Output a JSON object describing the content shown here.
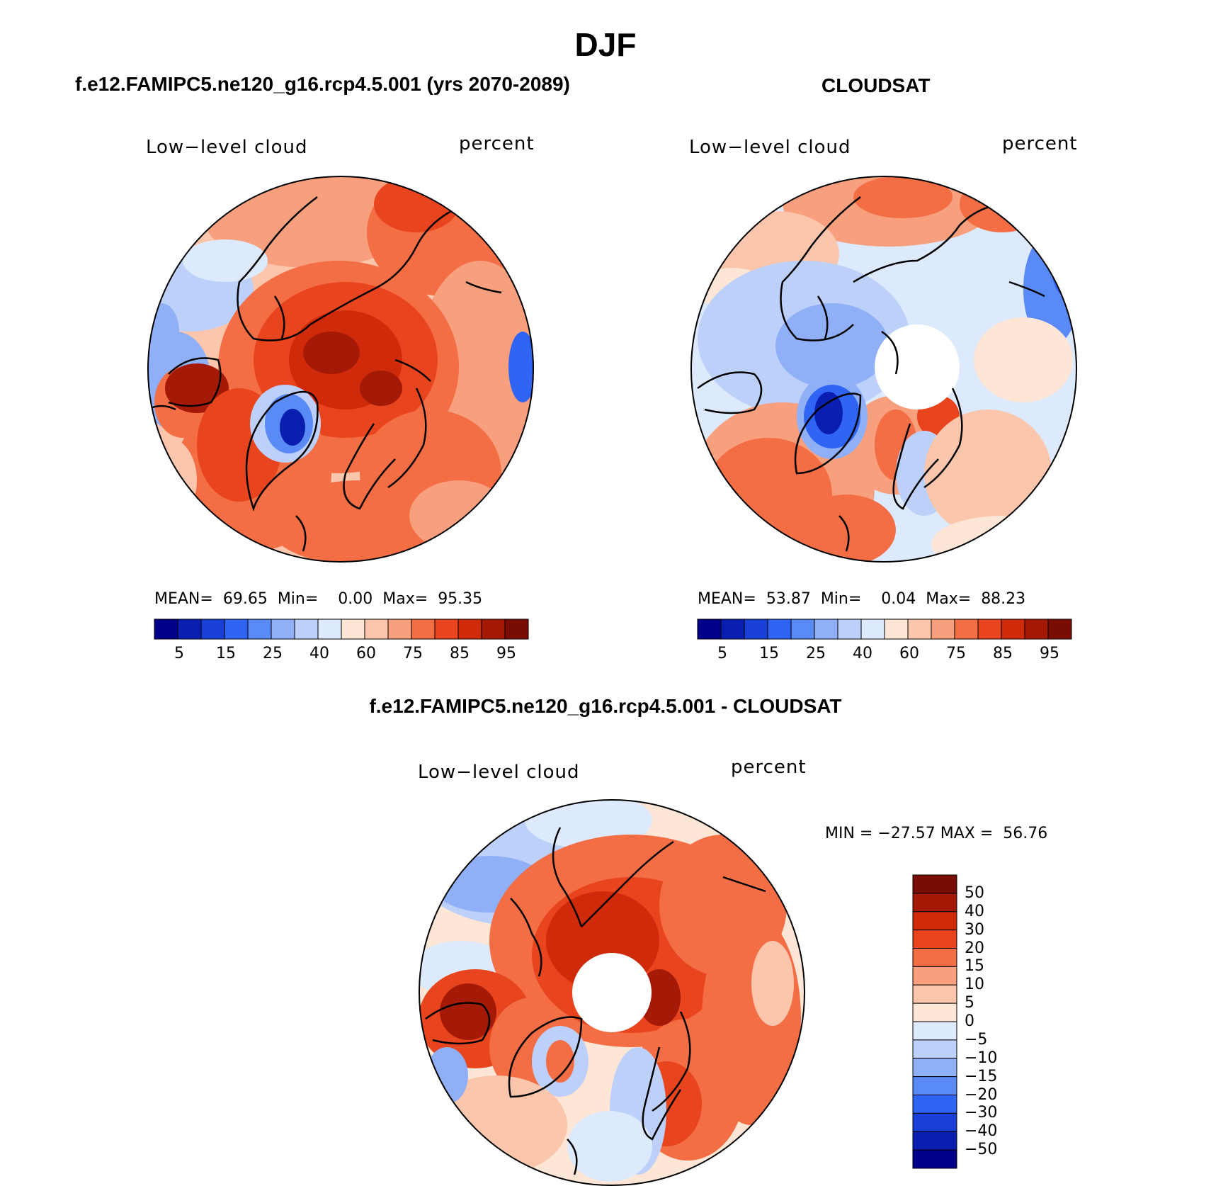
{
  "figure": {
    "title": "DJF"
  },
  "panels": {
    "model": {
      "title": "f.e12.FAMIPC5.ne120_g16.rcp4.5.001 (yrs 2070-2089)",
      "variable": "Low−level cloud",
      "units": "percent",
      "stats": {
        "mean_label": "MEAN=",
        "mean": "69.65",
        "min_label": "Min=",
        "min": "0.00",
        "max_label": "Max=",
        "max": "95.35"
      },
      "colorbar_ticks": [
        "5",
        "15",
        "25",
        "40",
        "60",
        "75",
        "85",
        "95"
      ]
    },
    "obs": {
      "title": "CLOUDSAT",
      "variable": "Low−level cloud",
      "units": "percent",
      "stats": {
        "mean_label": "MEAN=",
        "mean": "53.87",
        "min_label": "Min=",
        "min": "0.04",
        "max_label": "Max=",
        "max": "88.23"
      },
      "colorbar_ticks": [
        "5",
        "15",
        "25",
        "40",
        "60",
        "75",
        "85",
        "95"
      ]
    },
    "diff": {
      "title": "f.e12.FAMIPC5.ne120_g16.rcp4.5.001 - CLOUDSAT",
      "variable": "Low−level cloud",
      "units": "percent",
      "stats_text": "MIN = −27.57 MAX =  56.76",
      "colorbar_ticks": [
        "50",
        "40",
        "30",
        "20",
        "15",
        "10",
        "5",
        "0",
        "−5",
        "−10",
        "−15",
        "−20",
        "−30",
        "−40",
        "−50"
      ]
    }
  },
  "palettes": {
    "sequential": [
      "#00008b",
      "#0a1fb0",
      "#1a3fd8",
      "#2f64f5",
      "#5a8af5",
      "#8fb0f7",
      "#bcd0fa",
      "#ddeafd",
      "#fde6d6",
      "#fbc6ac",
      "#f8a07e",
      "#f36d45",
      "#e8441d",
      "#cf2a0a",
      "#a51a07",
      "#7a0d03"
    ],
    "difference": [
      "#7a0d03",
      "#a51a07",
      "#cf2a0a",
      "#e8441d",
      "#f36d45",
      "#f8a07e",
      "#fbc6ac",
      "#fde6d6",
      "#ddeafd",
      "#bcd0fa",
      "#8fb0f7",
      "#5a8af5",
      "#2f64f5",
      "#1a3fd8",
      "#0a1fb0",
      "#00008b"
    ]
  }
}
